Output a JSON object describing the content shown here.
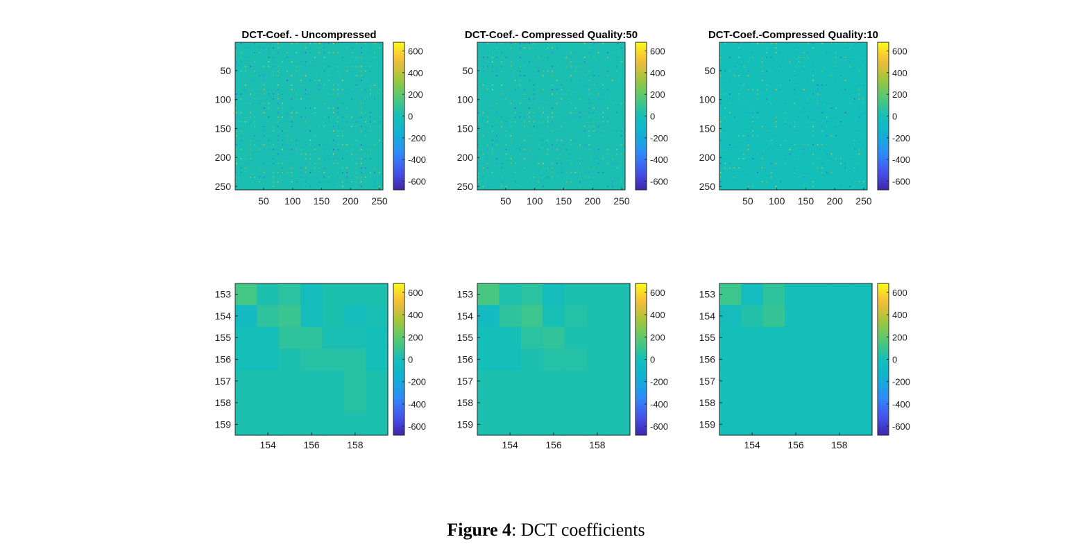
{
  "caption": {
    "label": "Figure 4",
    "text": ": DCT coefficients"
  },
  "chart_data": [
    {
      "type": "heatmap",
      "title": "DCT-Coef. - Uncompressed",
      "xlim": [
        1,
        256
      ],
      "ylim": [
        1,
        256
      ],
      "y_reversed": true,
      "xticks": [
        50,
        100,
        150,
        200,
        250
      ],
      "yticks": [
        50,
        100,
        150,
        200,
        250
      ],
      "colorbar": {
        "range": [
          -680,
          680
        ],
        "ticks": [
          600,
          400,
          200,
          0,
          -200,
          -400,
          -600
        ]
      },
      "background_value": 20,
      "sparse_density": 1.0
    },
    {
      "type": "heatmap",
      "title": "DCT-Coef.- Compressed Quality:50",
      "xlim": [
        1,
        256
      ],
      "ylim": [
        1,
        256
      ],
      "y_reversed": true,
      "xticks": [
        50,
        100,
        150,
        200,
        250
      ],
      "yticks": [
        50,
        100,
        150,
        200,
        250
      ],
      "colorbar": {
        "range": [
          -680,
          680
        ],
        "ticks": [
          600,
          400,
          200,
          0,
          -200,
          -400,
          -600
        ]
      },
      "background_value": 20,
      "sparse_density": 0.8
    },
    {
      "type": "heatmap",
      "title": "DCT-Coef.-Compressed Quality:10",
      "xlim": [
        1,
        256
      ],
      "ylim": [
        1,
        256
      ],
      "y_reversed": true,
      "xticks": [
        50,
        100,
        150,
        200,
        250
      ],
      "yticks": [
        50,
        100,
        150,
        200,
        250
      ],
      "colorbar": {
        "range": [
          -680,
          680
        ],
        "ticks": [
          600,
          400,
          200,
          0,
          -200,
          -400,
          -600
        ]
      },
      "background_value": 0,
      "sparse_density": 0.6
    },
    {
      "type": "heatmap",
      "title": "",
      "x": [
        153,
        154,
        155,
        156,
        157,
        158,
        159
      ],
      "y": [
        153,
        154,
        155,
        156,
        157,
        158,
        159
      ],
      "xticks": [
        154,
        156,
        158
      ],
      "yticks": [
        153,
        154,
        155,
        156,
        157,
        158,
        159
      ],
      "colorbar": {
        "range": [
          -680,
          680
        ],
        "ticks": [
          600,
          400,
          200,
          0,
          -200,
          -400,
          -600
        ]
      },
      "values": [
        [
          130,
          25,
          60,
          -20,
          25,
          25,
          25
        ],
        [
          -50,
          70,
          100,
          -20,
          25,
          -10,
          15
        ],
        [
          0,
          0,
          70,
          70,
          15,
          15,
          0
        ],
        [
          0,
          0,
          25,
          50,
          50,
          50,
          0
        ],
        [
          25,
          25,
          25,
          25,
          25,
          50,
          25
        ],
        [
          25,
          25,
          25,
          25,
          25,
          50,
          25
        ],
        [
          25,
          25,
          25,
          25,
          25,
          25,
          25
        ]
      ]
    },
    {
      "type": "heatmap",
      "title": "",
      "x": [
        153,
        154,
        155,
        156,
        157,
        158,
        159
      ],
      "y": [
        153,
        154,
        155,
        156,
        157,
        158,
        159
      ],
      "xticks": [
        154,
        156,
        158
      ],
      "yticks": [
        153,
        154,
        155,
        156,
        157,
        158,
        159
      ],
      "colorbar": {
        "range": [
          -680,
          680
        ],
        "ticks": [
          600,
          400,
          200,
          0,
          -200,
          -400,
          -600
        ]
      },
      "values": [
        [
          140,
          30,
          60,
          -10,
          25,
          25,
          25
        ],
        [
          -60,
          70,
          110,
          10,
          45,
          25,
          25
        ],
        [
          0,
          0,
          60,
          80,
          25,
          25,
          25
        ],
        [
          0,
          0,
          25,
          45,
          45,
          25,
          25
        ],
        [
          25,
          25,
          25,
          25,
          25,
          25,
          25
        ],
        [
          25,
          25,
          25,
          25,
          25,
          25,
          25
        ],
        [
          25,
          25,
          25,
          25,
          25,
          25,
          25
        ]
      ]
    },
    {
      "type": "heatmap",
      "title": "",
      "x": [
        153,
        154,
        155,
        156,
        157,
        158,
        159
      ],
      "y": [
        153,
        154,
        155,
        156,
        157,
        158,
        159
      ],
      "xticks": [
        154,
        156,
        158
      ],
      "yticks": [
        153,
        154,
        155,
        156,
        157,
        158,
        159
      ],
      "colorbar": {
        "range": [
          -680,
          680
        ],
        "ticks": [
          600,
          400,
          200,
          0,
          -200,
          -400,
          -600
        ]
      },
      "values": [
        [
          110,
          -30,
          70,
          0,
          0,
          0,
          0
        ],
        [
          -20,
          40,
          90,
          0,
          0,
          0,
          0
        ],
        [
          0,
          0,
          0,
          0,
          0,
          0,
          0
        ],
        [
          0,
          0,
          0,
          0,
          0,
          0,
          0
        ],
        [
          0,
          0,
          0,
          0,
          0,
          0,
          0
        ],
        [
          0,
          0,
          0,
          0,
          0,
          0,
          0
        ],
        [
          0,
          0,
          0,
          0,
          0,
          0,
          0
        ]
      ]
    }
  ]
}
